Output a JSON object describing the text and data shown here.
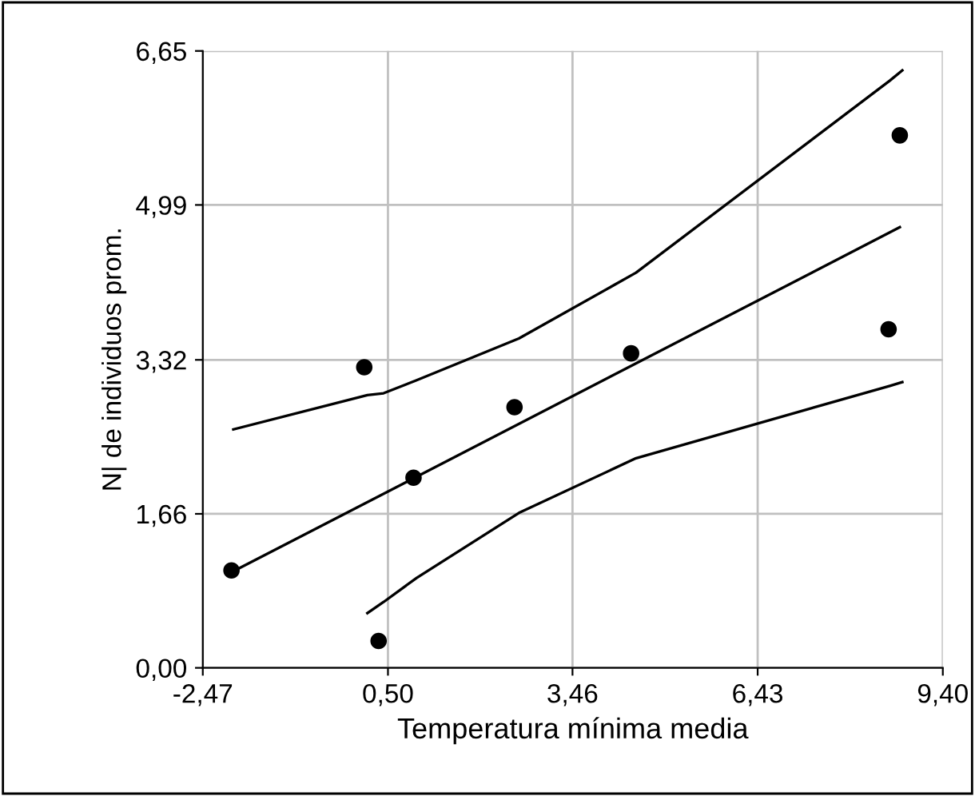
{
  "chart_data": {
    "type": "scatter",
    "xlabel": "Temperatura mínima media",
    "ylabel": "N| de individuos prom.",
    "xlim": [
      -2.47,
      9.4
    ],
    "ylim": [
      0,
      6.65
    ],
    "xticks": [
      {
        "value": -2.47,
        "label": "-2,47"
      },
      {
        "value": 0.5,
        "label": "0,50"
      },
      {
        "value": 3.46,
        "label": "3,46"
      },
      {
        "value": 6.43,
        "label": "6,43"
      },
      {
        "value": 9.4,
        "label": "9,40"
      }
    ],
    "yticks": [
      {
        "value": 0,
        "label": "0,00"
      },
      {
        "value": 1.66,
        "label": "1,66"
      },
      {
        "value": 3.32,
        "label": "3,32"
      },
      {
        "value": 4.99,
        "label": "4,99"
      },
      {
        "value": 6.65,
        "label": "6,65"
      }
    ],
    "grid": true,
    "series": [
      {
        "color": "#000000",
        "marker": "circle",
        "x": [
          -2.01,
          0.12,
          0.35,
          0.91,
          2.53,
          4.4,
          8.53,
          8.71
        ],
        "values": [
          1.05,
          3.24,
          0.29,
          2.05,
          2.81,
          3.39,
          3.65,
          5.74
        ]
      },
      {
        "type": "line",
        "color": "#000000",
        "marker": "none",
        "x": [
          -2.01,
          8.71
        ],
        "values": [
          1.03,
          4.75
        ]
      },
      {
        "type": "line",
        "color": "#000000",
        "marker": "none",
        "x": [
          -1.98,
          0.17,
          0.43,
          0.96,
          2.6,
          4.48,
          8.55,
          8.75
        ],
        "values": [
          2.57,
          2.94,
          2.96,
          3.1,
          3.55,
          4.26,
          6.33,
          6.44
        ]
      },
      {
        "type": "line",
        "color": "#000000",
        "marker": "none",
        "x": [
          0.17,
          0.43,
          0.96,
          2.6,
          4.48,
          8.55,
          8.75
        ],
        "values": [
          0.59,
          0.71,
          0.97,
          1.67,
          2.26,
          3.04,
          3.08
        ]
      }
    ]
  }
}
